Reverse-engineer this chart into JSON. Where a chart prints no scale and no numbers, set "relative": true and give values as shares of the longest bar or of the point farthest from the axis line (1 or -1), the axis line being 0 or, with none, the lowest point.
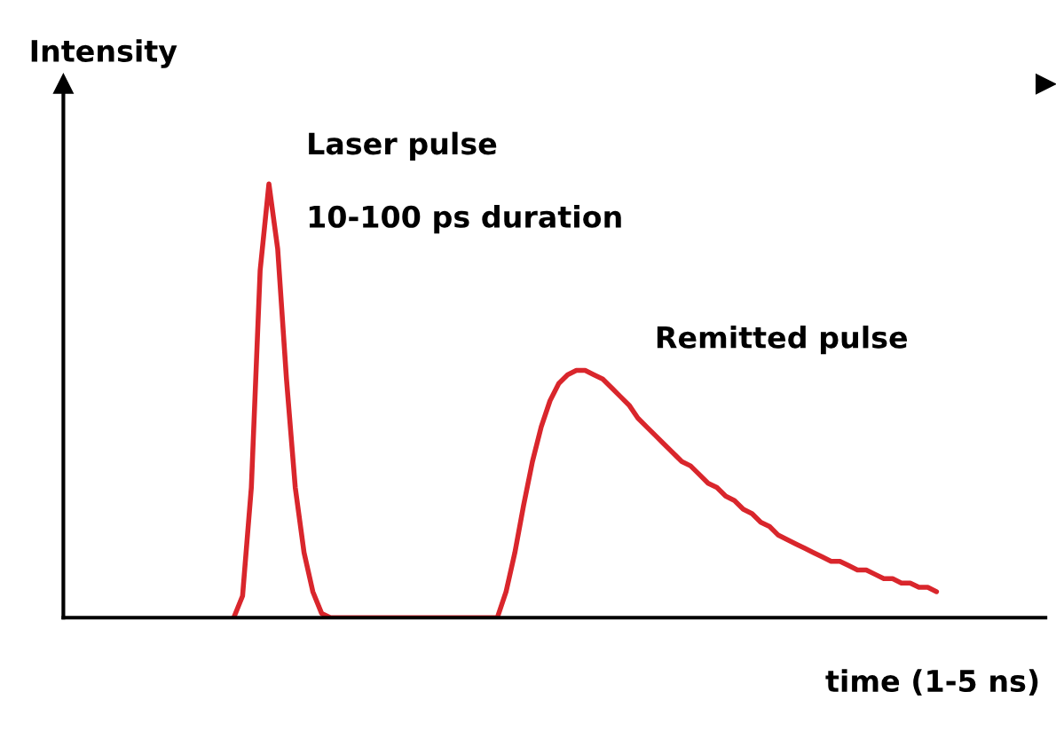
{
  "chart_data": {
    "type": "line",
    "relative": true,
    "ylabel": "Intensity",
    "xlabel": "time (1-5 ns)",
    "annotations": [
      "Laser pulse",
      "10-100 ps duration",
      "Remitted pulse"
    ],
    "categories": [
      null,
      null,
      null,
      null,
      null,
      null,
      null,
      null,
      null,
      null,
      null,
      null,
      null,
      null,
      null,
      null,
      null,
      null,
      null,
      null,
      null,
      null,
      null,
      null,
      null,
      null,
      null,
      null,
      null,
      null,
      null,
      null,
      null,
      null,
      null,
      null,
      null,
      null,
      null,
      null,
      null,
      null,
      null,
      null,
      null,
      null,
      null,
      null,
      null,
      null,
      null,
      null,
      null,
      null,
      null,
      null,
      null,
      null,
      null,
      null,
      null,
      null,
      null,
      null,
      null,
      null,
      null,
      null,
      null,
      null,
      null,
      null,
      null,
      null,
      null,
      null,
      null,
      null,
      null,
      null,
      null
    ],
    "series": [
      {
        "color": "#d9262c",
        "values": [
          0,
          0.05,
          0.3,
          0.8,
          1.0,
          0.85,
          0.55,
          0.3,
          0.15,
          0.06,
          0.01,
          0,
          0,
          0,
          0,
          0,
          0,
          0,
          0,
          0,
          0,
          0,
          0,
          0,
          0,
          0,
          0,
          0,
          0,
          0,
          0,
          0.06,
          0.15,
          0.26,
          0.36,
          0.44,
          0.5,
          0.54,
          0.56,
          0.57,
          0.57,
          0.56,
          0.55,
          0.53,
          0.51,
          0.49,
          0.46,
          0.44,
          0.42,
          0.4,
          0.38,
          0.36,
          0.35,
          0.33,
          0.31,
          0.3,
          0.28,
          0.27,
          0.25,
          0.24,
          0.22,
          0.21,
          0.19,
          0.18,
          0.17,
          0.16,
          0.15,
          0.14,
          0.13,
          0.13,
          0.12,
          0.11,
          0.11,
          0.1,
          0.09,
          0.09,
          0.08,
          0.08,
          0.07,
          0.07,
          0.06
        ]
      }
    ]
  }
}
